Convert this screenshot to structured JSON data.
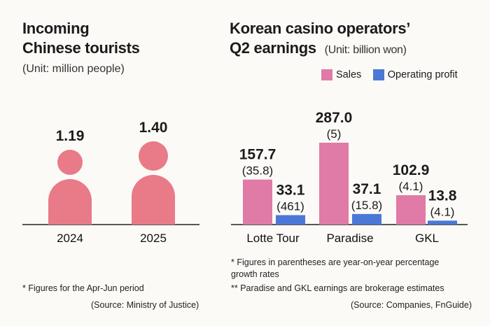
{
  "colors": {
    "person": "#e97a88",
    "sales": "#e07aa6",
    "profit": "#4b78d6",
    "axis": "#222222"
  },
  "left": {
    "title_line1": "Incoming",
    "title_line2": "Chinese tourists",
    "unit": "(Unit: million people)",
    "note": "* Figures for the Apr-Jun period",
    "source": "(Source: Ministry of Justice)"
  },
  "right": {
    "title_line1": "Korean casino operators’",
    "title_line2": "Q2 earnings",
    "unit": "(Unit: billion won)",
    "legend": {
      "sales": "Sales",
      "profit": "Operating profit"
    },
    "note1": "* Figures in parentheses are year-on-year percentage growth rates",
    "note2": "** Paradise and GKL earnings are brokerage estimates",
    "source": "(Source: Companies, FnGuide)"
  },
  "chart_data": [
    {
      "type": "bar",
      "categories": [
        "2024",
        "2025"
      ],
      "values": [
        1.19,
        1.4
      ],
      "value_labels": [
        "1.19",
        "1.40"
      ]
    },
    {
      "type": "bar",
      "categories": [
        "Lotte Tour",
        "Paradise",
        "GKL"
      ],
      "series": [
        {
          "name": "Sales",
          "values": [
            157.7,
            287.0,
            102.9
          ],
          "labels": [
            "157.7",
            "287.0",
            "102.9"
          ],
          "growth": [
            "(35.8)",
            "(5)",
            "(4.1)"
          ]
        },
        {
          "name": "Operating profit",
          "values": [
            33.1,
            37.1,
            13.8
          ],
          "labels": [
            "33.1",
            "37.1",
            "13.8"
          ],
          "growth": [
            "(461)",
            "(15.8)",
            "(4.1)"
          ]
        }
      ]
    }
  ]
}
